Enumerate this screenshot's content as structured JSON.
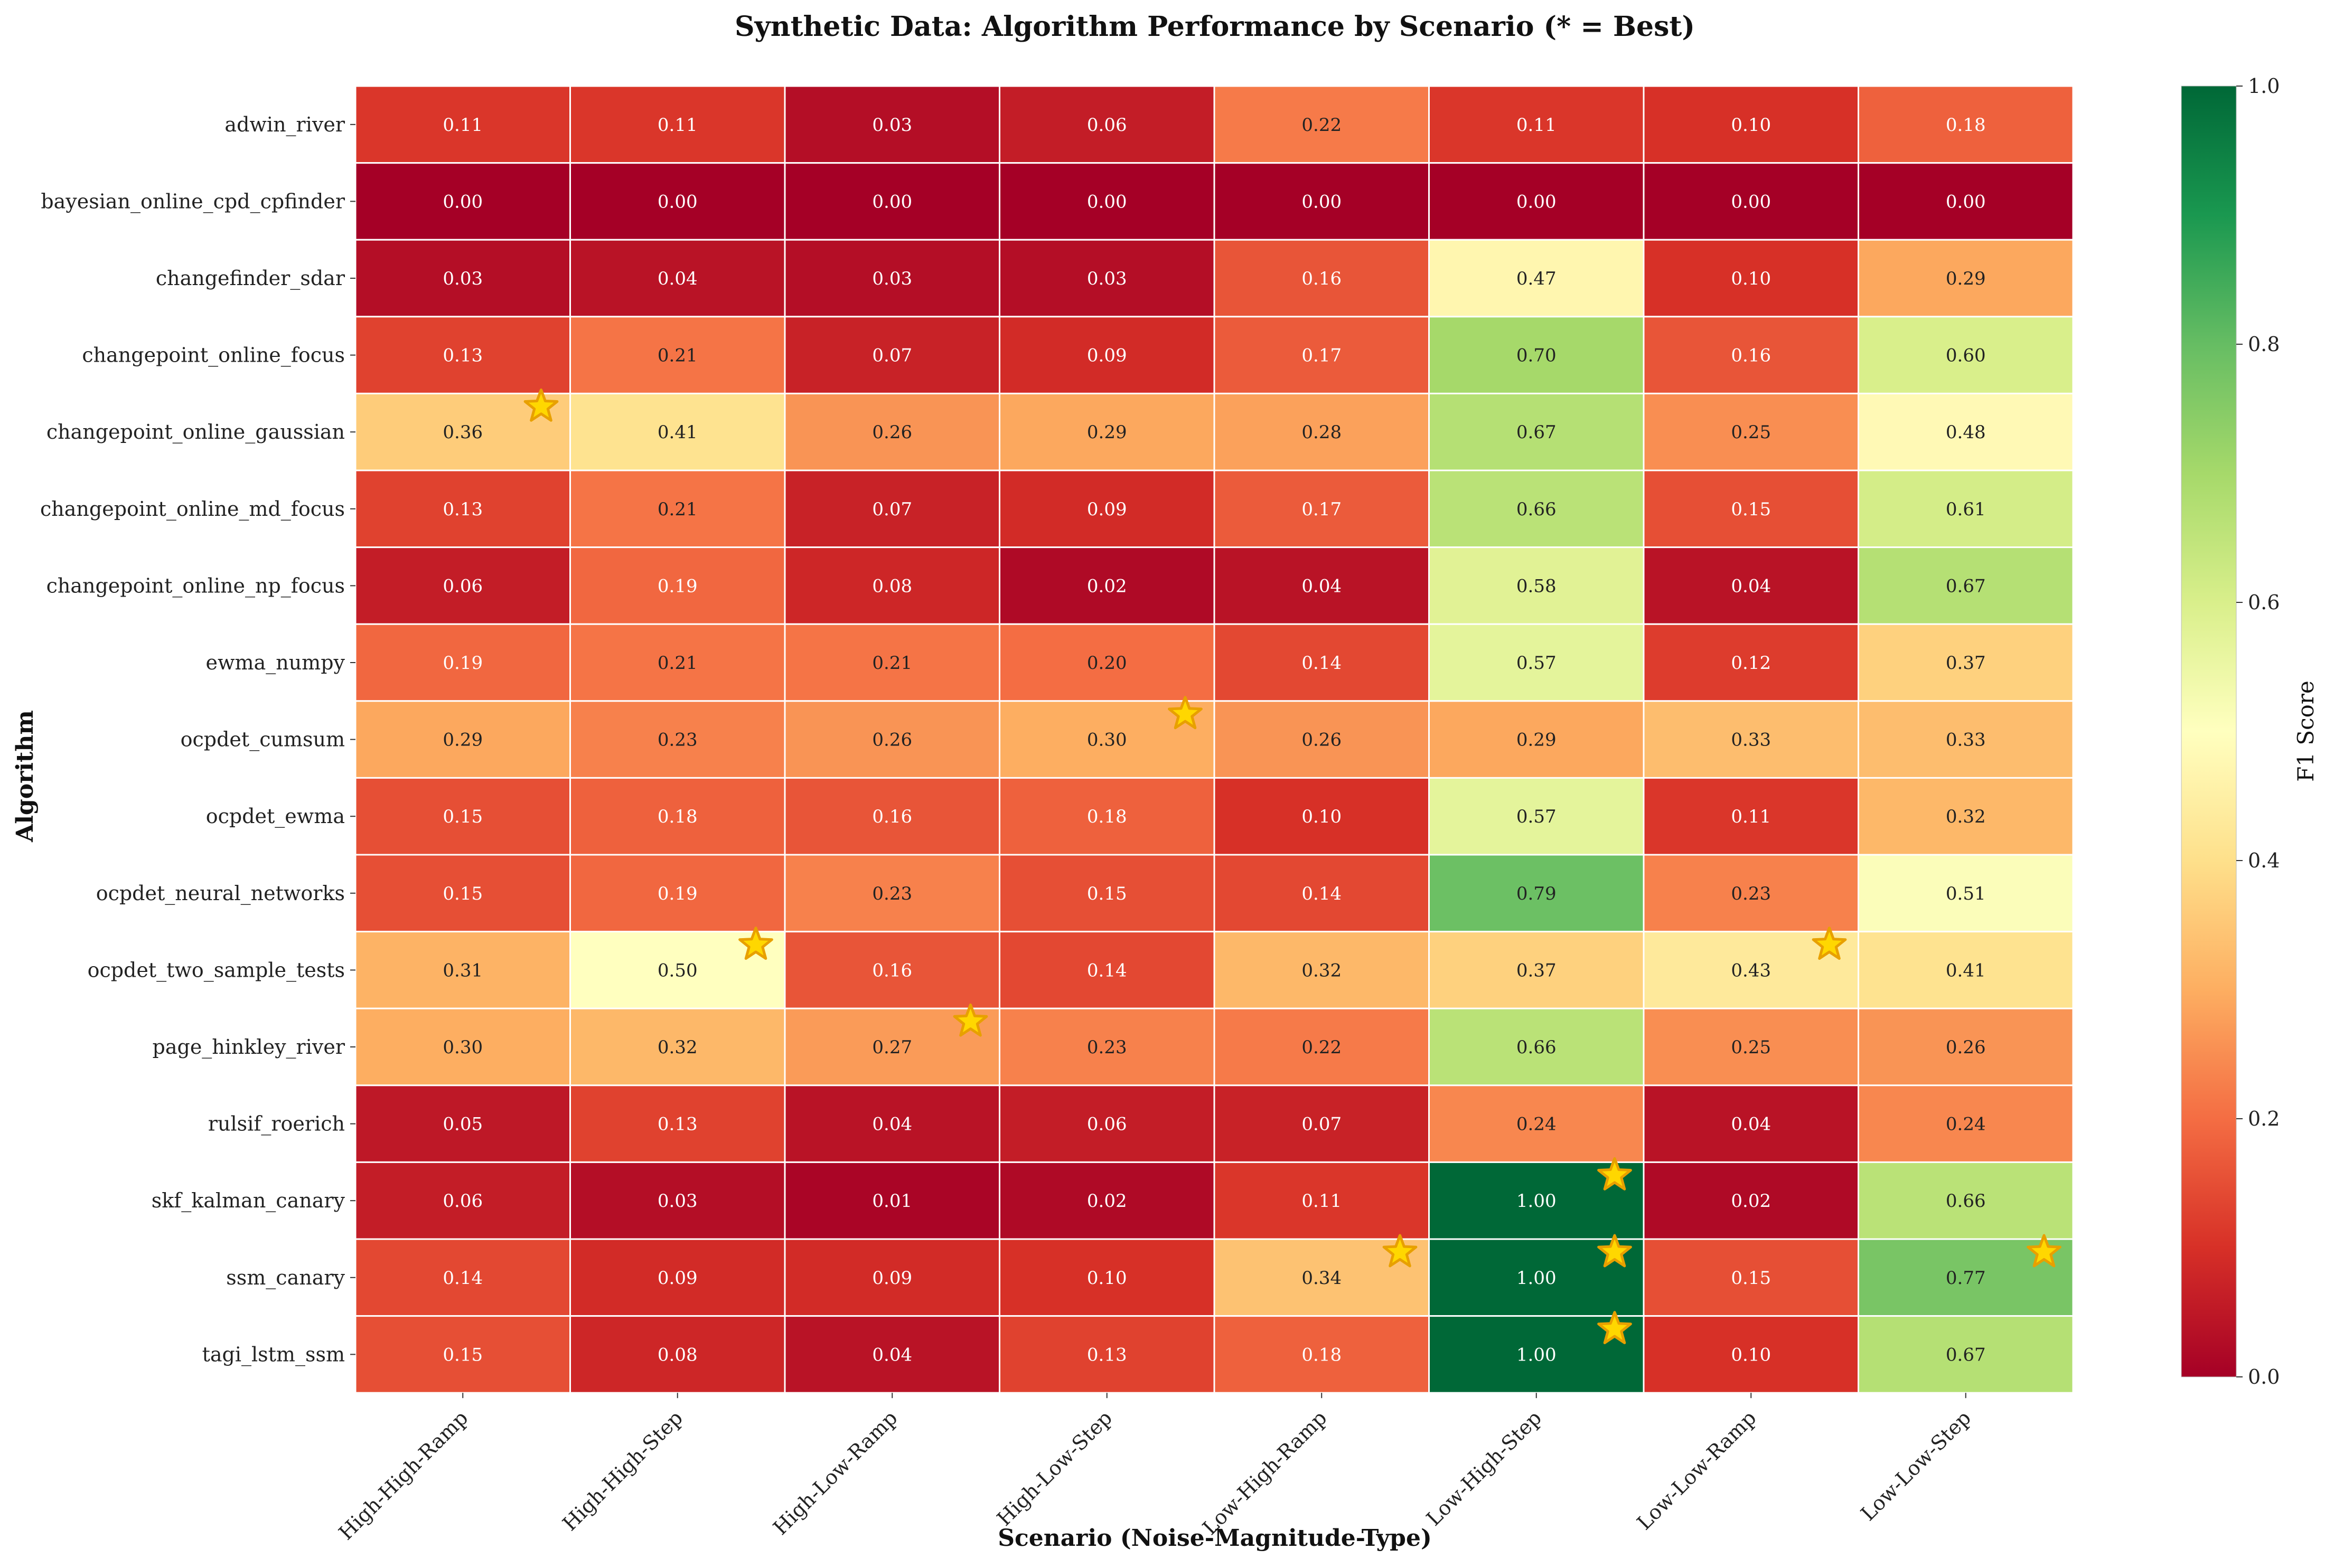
{
  "chart_data": {
    "type": "heatmap",
    "title": "Synthetic Data: Algorithm Performance by Scenario (* = Best)",
    "xlabel": "Scenario (Noise-Magnitude-Type)",
    "ylabel": "Algorithm",
    "colorbar_label": "F1 Score",
    "colormap": "RdYlGn",
    "vmin": 0.0,
    "vmax": 1.0,
    "colorbar_ticks": [
      "0.0",
      "0.2",
      "0.4",
      "0.6",
      "0.8",
      "1.0"
    ],
    "columns": [
      "High-High-Ramp",
      "High-High-Step",
      "High-Low-Ramp",
      "High-Low-Step",
      "Low-High-Ramp",
      "Low-High-Step",
      "Low-Low-Ramp",
      "Low-Low-Step"
    ],
    "rows": [
      "adwin_river",
      "bayesian_online_cpd_cpfinder",
      "changefinder_sdar",
      "changepoint_online_focus",
      "changepoint_online_gaussian",
      "changepoint_online_md_focus",
      "changepoint_online_np_focus",
      "ewma_numpy",
      "ocpdet_cumsum",
      "ocpdet_ewma",
      "ocpdet_neural_networks",
      "ocpdet_two_sample_tests",
      "page_hinkley_river",
      "rulsif_roerich",
      "skf_kalman_canary",
      "ssm_canary",
      "tagi_lstm_ssm"
    ],
    "values": [
      [
        0.11,
        0.11,
        0.03,
        0.06,
        0.22,
        0.11,
        0.1,
        0.18
      ],
      [
        0.0,
        0.0,
        0.0,
        0.0,
        0.0,
        0.0,
        0.0,
        0.0
      ],
      [
        0.03,
        0.04,
        0.03,
        0.03,
        0.16,
        0.47,
        0.1,
        0.29
      ],
      [
        0.13,
        0.21,
        0.07,
        0.09,
        0.17,
        0.7,
        0.16,
        0.6
      ],
      [
        0.36,
        0.41,
        0.26,
        0.29,
        0.28,
        0.67,
        0.25,
        0.48
      ],
      [
        0.13,
        0.21,
        0.07,
        0.09,
        0.17,
        0.66,
        0.15,
        0.61
      ],
      [
        0.06,
        0.19,
        0.08,
        0.02,
        0.04,
        0.58,
        0.04,
        0.67
      ],
      [
        0.19,
        0.21,
        0.21,
        0.2,
        0.14,
        0.57,
        0.12,
        0.37
      ],
      [
        0.29,
        0.23,
        0.26,
        0.3,
        0.26,
        0.29,
        0.33,
        0.33
      ],
      [
        0.15,
        0.18,
        0.16,
        0.18,
        0.1,
        0.57,
        0.11,
        0.32
      ],
      [
        0.15,
        0.19,
        0.23,
        0.15,
        0.14,
        0.79,
        0.23,
        0.51
      ],
      [
        0.31,
        0.5,
        0.16,
        0.14,
        0.32,
        0.37,
        0.43,
        0.41
      ],
      [
        0.3,
        0.32,
        0.27,
        0.23,
        0.22,
        0.66,
        0.25,
        0.26
      ],
      [
        0.05,
        0.13,
        0.04,
        0.06,
        0.07,
        0.24,
        0.04,
        0.24
      ],
      [
        0.06,
        0.03,
        0.01,
        0.02,
        0.11,
        1.0,
        0.02,
        0.66
      ],
      [
        0.14,
        0.09,
        0.09,
        0.1,
        0.34,
        1.0,
        0.15,
        0.77
      ],
      [
        0.15,
        0.08,
        0.04,
        0.13,
        0.18,
        1.0,
        0.1,
        0.67
      ]
    ],
    "best_markers": [
      {
        "row": "changepoint_online_gaussian",
        "column": "High-High-Ramp"
      },
      {
        "row": "ocpdet_two_sample_tests",
        "column": "High-High-Step"
      },
      {
        "row": "page_hinkley_river",
        "column": "High-Low-Ramp"
      },
      {
        "row": "ocpdet_cumsum",
        "column": "High-Low-Step"
      },
      {
        "row": "ssm_canary",
        "column": "Low-High-Ramp"
      },
      {
        "row": "skf_kalman_canary",
        "column": "Low-High-Step"
      },
      {
        "row": "ssm_canary",
        "column": "Low-High-Step"
      },
      {
        "row": "tagi_lstm_ssm",
        "column": "Low-High-Step"
      },
      {
        "row": "ocpdet_two_sample_tests",
        "column": "Low-Low-Ramp"
      },
      {
        "row": "ssm_canary",
        "column": "Low-Low-Step"
      }
    ],
    "marker_color": "#FFD700",
    "marker_edge_color": "#E8A000",
    "grid": false,
    "legend": "none"
  }
}
